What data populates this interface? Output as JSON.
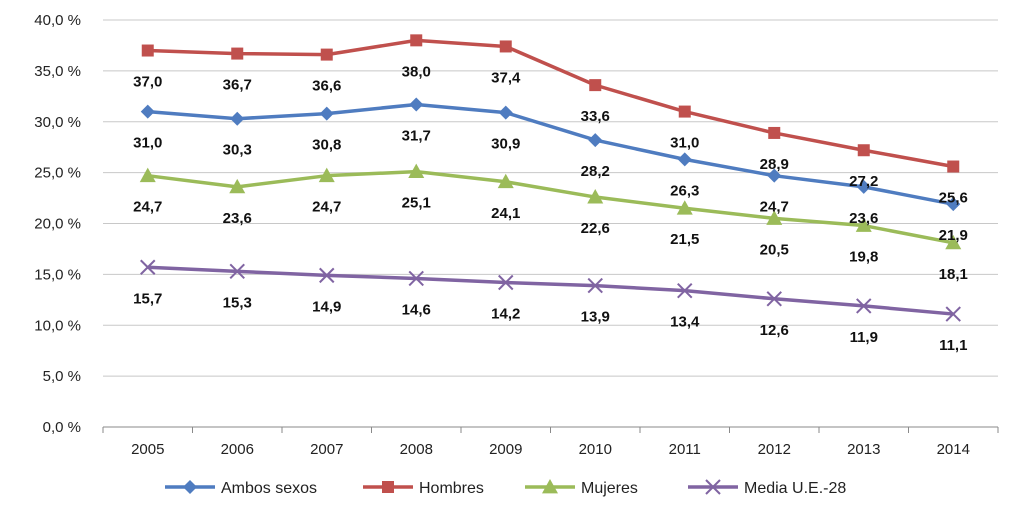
{
  "chart_data": {
    "type": "line",
    "categories": [
      "2005",
      "2006",
      "2007",
      "2008",
      "2009",
      "2010",
      "2011",
      "2012",
      "2013",
      "2014"
    ],
    "ylim": [
      0,
      40
    ],
    "ystep": 5,
    "ytick_labels": [
      "0,0 %",
      "5,0 %",
      "10,0 %",
      "15,0 %",
      "20,0 %",
      "25,0 %",
      "30,0 %",
      "35,0 %",
      "40,0 %"
    ],
    "grid": true,
    "legend_position": "bottom",
    "series": [
      {
        "name": "Ambos sexos",
        "color": "#4F7CC0",
        "marker": "diamond",
        "values": [
          31.0,
          30.3,
          30.8,
          31.7,
          30.9,
          28.2,
          26.3,
          24.7,
          23.6,
          21.9
        ],
        "labels": [
          "31,0",
          "30,3",
          "30,8",
          "31,7",
          "30,9",
          "28,2",
          "26,3",
          "24,7",
          "23,6",
          "21,9"
        ]
      },
      {
        "name": "Hombres",
        "color": "#C0504D",
        "marker": "square",
        "values": [
          37.0,
          36.7,
          36.6,
          38.0,
          37.4,
          33.6,
          31.0,
          28.9,
          27.2,
          25.6
        ],
        "labels": [
          "37,0",
          "36,7",
          "36,6",
          "38,0",
          "37,4",
          "33,6",
          "31,0",
          "28,9",
          "27,2",
          "25,6"
        ]
      },
      {
        "name": "Mujeres",
        "color": "#9BBB59",
        "marker": "triangle",
        "values": [
          24.7,
          23.6,
          24.7,
          25.1,
          24.1,
          22.6,
          21.5,
          20.5,
          19.8,
          18.1
        ],
        "labels": [
          "24,7",
          "23,6",
          "24,7",
          "25,1",
          "24,1",
          "22,6",
          "21,5",
          "20,5",
          "19,8",
          "18,1"
        ]
      },
      {
        "name": "Media U.E.-28",
        "color": "#8064A2",
        "marker": "x",
        "values": [
          15.7,
          15.3,
          14.9,
          14.6,
          14.2,
          13.9,
          13.4,
          12.6,
          11.9,
          11.1
        ],
        "labels": [
          "15,7",
          "15,3",
          "14,9",
          "14,6",
          "14,2",
          "13,9",
          "13,4",
          "12,6",
          "11,9",
          "11,1"
        ]
      }
    ]
  }
}
